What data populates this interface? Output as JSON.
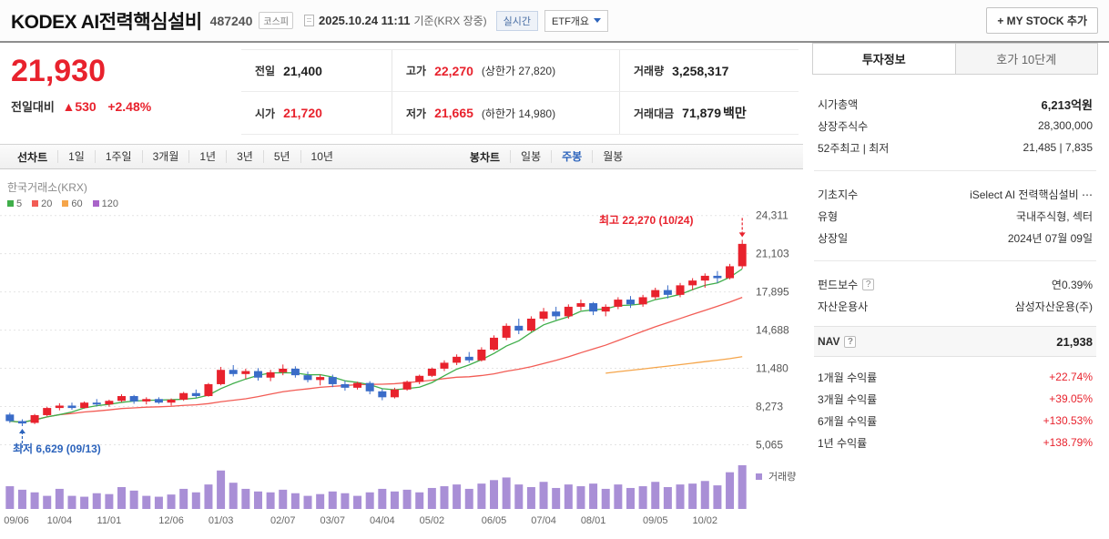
{
  "header": {
    "title": "KODEX AI전력핵심설비",
    "code": "487240",
    "market_badge": "코스피",
    "datetime": "2025.10.24 11:11",
    "datetime_suffix": "기준(KRX 장중)",
    "realtime_badge": "실시간",
    "etf_overview_label": "ETF개요",
    "mystock_button": "+ MY STOCK 추가"
  },
  "price": {
    "current": "21,930",
    "change_label": "전일대비",
    "change_arrow": "▲",
    "change_value": "530",
    "change_percent": "+2.48%"
  },
  "summary": {
    "rows": [
      [
        {
          "label": "전일",
          "value": "21,400"
        },
        {
          "label": "고가",
          "value": "22,270",
          "extra": "(상한가 27,820)"
        },
        {
          "label": "거래량",
          "value": "3,258,317"
        }
      ],
      [
        {
          "label": "시가",
          "value": "21,720"
        },
        {
          "label": "저가",
          "value": "21,665",
          "extra": "(하한가 14,980)"
        },
        {
          "label": "거래대금",
          "value": "71,879",
          "suffix": "백만"
        }
      ]
    ]
  },
  "chart_toolbar": {
    "line_label": "선차트",
    "line_tabs": [
      "1일",
      "1주일",
      "3개월",
      "1년",
      "3년",
      "5년",
      "10년"
    ],
    "candle_label": "봉차트",
    "candle_tabs": [
      "일봉",
      "주봉",
      "월봉"
    ],
    "selected": "주봉"
  },
  "chart": {
    "source": "한국거래소(KRX)",
    "legend": [
      {
        "label": "5",
        "color": "#3fae4a"
      },
      {
        "label": "20",
        "color": "#f25c55"
      },
      {
        "label": "60",
        "color": "#f5a54a"
      },
      {
        "label": "120",
        "color": "#a964c9"
      }
    ],
    "high_annotation": "최고 22,270 (10/24)",
    "low_annotation": "최저 6,629 (09/13)",
    "volume_label": "거래량"
  },
  "chart_data": {
    "type": "candlestick",
    "period": "주봉(weekly)",
    "title": "KODEX AI전력핵심설비 주봉 차트",
    "y_ticks": [
      24311,
      21103,
      17895,
      14688,
      11480,
      8273,
      5065
    ],
    "y_tick_labels": [
      "24,311",
      "21,103",
      "17,895",
      "14,688",
      "11,480",
      "8,273",
      "5,065"
    ],
    "y_range": [
      3800,
      27500
    ],
    "x_labels": [
      "09/06",
      "10/04",
      "11/01",
      "12/06",
      "01/03",
      "02/07",
      "03/07",
      "04/04",
      "05/02",
      "06/05",
      "07/04",
      "08/01",
      "09/05",
      "10/02"
    ],
    "x_label_indices": [
      0,
      4,
      8,
      13,
      17,
      22,
      26,
      30,
      34,
      39,
      43,
      47,
      52,
      56
    ],
    "high_point": {
      "label": "최고 22,270 (10/24)",
      "value": 22270,
      "index": 59
    },
    "low_point": {
      "label": "최저 6,629 (09/13)",
      "value": 6629,
      "index": 1
    },
    "ma_windows": [
      5,
      20,
      60,
      120
    ],
    "ma_colors": {
      "5": "#3fae4a",
      "20": "#f25c55",
      "60": "#f5a54a",
      "120": "#a964c9"
    },
    "colors": {
      "up": "#e8222d",
      "down": "#3a6cc8",
      "volume": "#a98fd6"
    },
    "candles": [
      [
        7600,
        7750,
        6900,
        7050
      ],
      [
        7050,
        7200,
        6629,
        6850
      ],
      [
        6900,
        7650,
        6800,
        7550
      ],
      [
        7550,
        8250,
        7450,
        8150
      ],
      [
        8150,
        8550,
        7950,
        8350
      ],
      [
        8350,
        8600,
        8000,
        8150
      ],
      [
        8150,
        8700,
        8100,
        8600
      ],
      [
        8600,
        8900,
        8300,
        8450
      ],
      [
        8450,
        8850,
        8250,
        8750
      ],
      [
        8750,
        9300,
        8650,
        9150
      ],
      [
        9150,
        9250,
        8500,
        8700
      ],
      [
        8700,
        9050,
        8450,
        8900
      ],
      [
        8900,
        9050,
        8500,
        8600
      ],
      [
        8600,
        8950,
        8350,
        8850
      ],
      [
        8850,
        9500,
        8750,
        9400
      ],
      [
        9400,
        9700,
        9000,
        9150
      ],
      [
        9150,
        10250,
        9100,
        10150
      ],
      [
        10150,
        11600,
        10050,
        11350
      ],
      [
        11350,
        11750,
        10800,
        11000
      ],
      [
        11000,
        11450,
        10600,
        11250
      ],
      [
        11250,
        11500,
        10450,
        10700
      ],
      [
        10700,
        11350,
        10400,
        11150
      ],
      [
        11150,
        11800,
        10900,
        11450
      ],
      [
        11450,
        11650,
        10700,
        10900
      ],
      [
        10900,
        11200,
        10300,
        10500
      ],
      [
        10500,
        10950,
        10050,
        10750
      ],
      [
        10750,
        10950,
        9900,
        10150
      ],
      [
        10150,
        10450,
        9600,
        9850
      ],
      [
        9850,
        10350,
        9700,
        10250
      ],
      [
        10250,
        10400,
        9300,
        9550
      ],
      [
        9550,
        9750,
        8800,
        9050
      ],
      [
        9050,
        9850,
        8950,
        9700
      ],
      [
        9700,
        10450,
        9600,
        10350
      ],
      [
        10350,
        10950,
        10150,
        10850
      ],
      [
        10850,
        11550,
        10750,
        11450
      ],
      [
        11450,
        12150,
        11250,
        11950
      ],
      [
        11950,
        12650,
        11750,
        12450
      ],
      [
        12450,
        12850,
        11950,
        12150
      ],
      [
        12150,
        13250,
        12050,
        13050
      ],
      [
        13050,
        14250,
        12950,
        14050
      ],
      [
        14050,
        15250,
        13850,
        15050
      ],
      [
        15050,
        15650,
        14350,
        14650
      ],
      [
        14650,
        15850,
        14550,
        15650
      ],
      [
        15650,
        16550,
        15450,
        16250
      ],
      [
        16250,
        16650,
        15550,
        15850
      ],
      [
        15850,
        16850,
        15650,
        16650
      ],
      [
        16650,
        17250,
        16350,
        16950
      ],
      [
        16950,
        17050,
        15950,
        16250
      ],
      [
        16250,
        16850,
        15850,
        16650
      ],
      [
        16650,
        17450,
        16450,
        17250
      ],
      [
        17250,
        17550,
        16550,
        16850
      ],
      [
        16850,
        17650,
        16650,
        17450
      ],
      [
        17450,
        18250,
        17250,
        18050
      ],
      [
        18050,
        18450,
        17350,
        17650
      ],
      [
        17650,
        18650,
        17450,
        18450
      ],
      [
        18450,
        19050,
        18050,
        18850
      ],
      [
        18850,
        19450,
        18250,
        19250
      ],
      [
        19250,
        19650,
        18650,
        19050
      ],
      [
        19050,
        20250,
        18950,
        20050
      ],
      [
        20050,
        22270,
        19850,
        21930
      ]
    ],
    "volumes": [
      52,
      44,
      38,
      30,
      46,
      30,
      28,
      36,
      34,
      50,
      42,
      30,
      28,
      33,
      46,
      38,
      56,
      88,
      60,
      46,
      40,
      38,
      44,
      36,
      30,
      34,
      40,
      36,
      30,
      38,
      46,
      40,
      44,
      38,
      48,
      52,
      56,
      46,
      58,
      66,
      72,
      56,
      50,
      62,
      48,
      56,
      52,
      58,
      46,
      56,
      48,
      52,
      62,
      50,
      56,
      58,
      64,
      54,
      84,
      100
    ]
  },
  "sidebar": {
    "tabs": [
      {
        "label": "투자정보"
      },
      {
        "label": "호가 10단계"
      }
    ],
    "rows_group1": [
      {
        "label": "시가총액",
        "value": "6,213억원"
      },
      {
        "label": "상장주식수",
        "value": "28,300,000"
      },
      {
        "label": "52주최고 | 최저",
        "value": "21,485 | 7,835"
      }
    ],
    "rows_group2": [
      {
        "label": "기초지수",
        "value": "iSelect AI 전력핵심설비 ⋯"
      },
      {
        "label": "유형",
        "value": "국내주식형, 섹터"
      },
      {
        "label": "상장일",
        "value": "2024년 07월 09일"
      }
    ],
    "rows_group3": [
      {
        "label": "펀드보수",
        "value": "연0.39%"
      },
      {
        "label": "자산운용사",
        "value": "삼성자산운용(주)"
      }
    ],
    "nav": {
      "label": "NAV",
      "value": "21,938"
    },
    "returns": [
      {
        "label": "1개월 수익률",
        "value": "+22.74%"
      },
      {
        "label": "3개월 수익률",
        "value": "+39.05%"
      },
      {
        "label": "6개월 수익률",
        "value": "+130.53%"
      },
      {
        "label": "1년 수익률",
        "value": "+138.79%"
      }
    ]
  },
  "icons": {
    "help": "?"
  },
  "theme": {
    "up_red": "#e8222d",
    "down_blue": "#2d64bc",
    "accent_blue": "#2d64bc",
    "volume_purple": "#a98fd6"
  }
}
